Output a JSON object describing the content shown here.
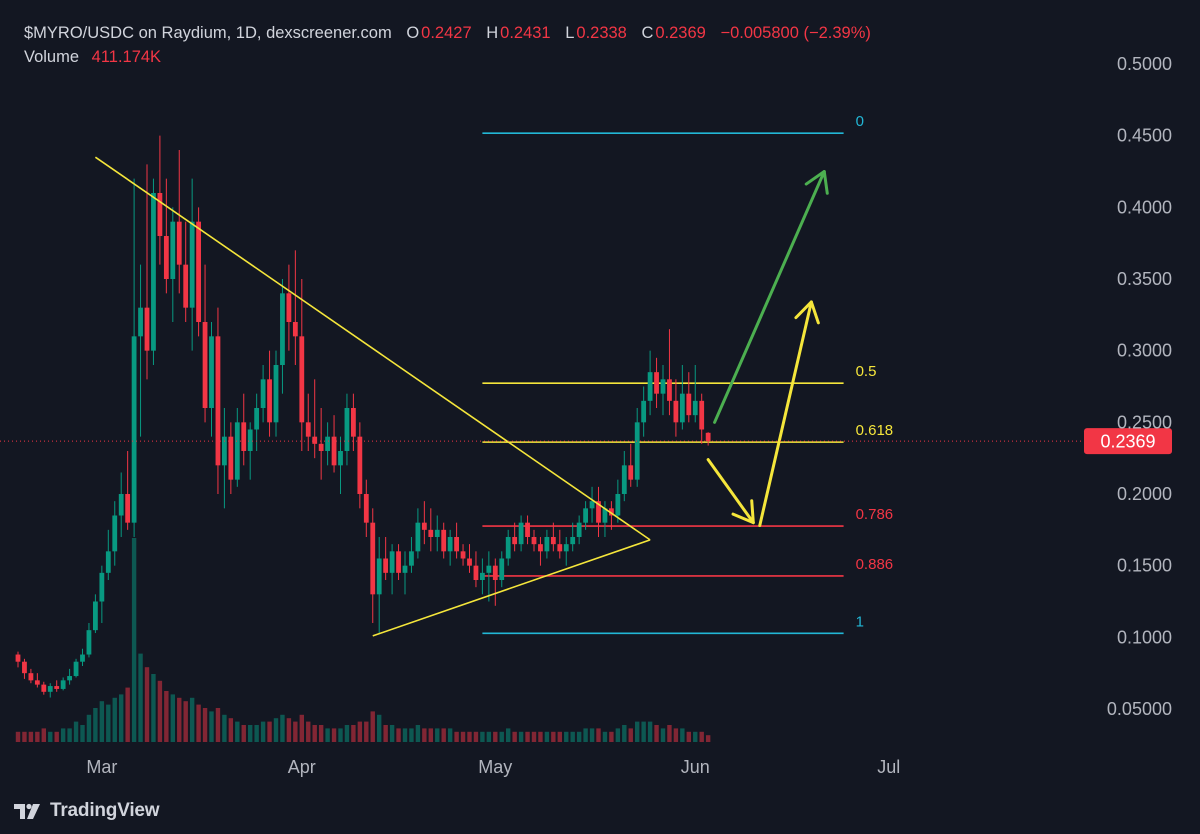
{
  "header": {
    "title": "$MYRO/USDC on Raydium, 1D, dexscreener.com",
    "o_label": "O",
    "o_value": "0.2427",
    "h_label": "H",
    "h_value": "0.2431",
    "l_label": "L",
    "l_value": "0.2338",
    "c_label": "C",
    "c_value": "0.2369",
    "change": "−0.005800 (−2.39%)"
  },
  "volume": {
    "label": "Volume",
    "value": "411.174K"
  },
  "footer": {
    "brand": "TradingView",
    "logo_icon": "tradingview-logo-icon"
  },
  "colors": {
    "up": "#089981",
    "down": "#f23645",
    "background": "#131722",
    "fib_blue": "#22b7d6",
    "fib_yellow": "#f5e63b",
    "fib_red": "#f23645",
    "green_arrow": "#4caf50"
  },
  "chart_data": {
    "type": "candlestick",
    "x_labels": [
      "Mar",
      "Apr",
      "May",
      "Jun",
      "Jul"
    ],
    "y_ticks": [
      "0.5000",
      "0.4500",
      "0.4000",
      "0.3500",
      "0.3000",
      "0.2500",
      "0.2000",
      "0.1500",
      "0.1000",
      "0.05000"
    ],
    "ylim": [
      0.025,
      0.51
    ],
    "last_price": "0.2369",
    "last_price_value": 0.2369,
    "fib_levels": [
      {
        "label": "0",
        "value": 0.4517,
        "color": "#22b7d6"
      },
      {
        "label": "0.5",
        "value": 0.2773,
        "color": "#f5e63b"
      },
      {
        "label": "0.618",
        "value": 0.2362,
        "color": "#f5e63b"
      },
      {
        "label": "0.786",
        "value": 0.1776,
        "color": "#f23645"
      },
      {
        "label": "0.886",
        "value": 0.1428,
        "color": "#f23645"
      },
      {
        "label": "1",
        "value": 0.1028,
        "color": "#22b7d6"
      }
    ],
    "trendlines": [
      {
        "from": [
          "02-29",
          0.435
        ],
        "to": [
          "05-25",
          0.168
        ]
      },
      {
        "from": [
          "04-12",
          0.101
        ],
        "to": [
          "05-25",
          0.168
        ]
      }
    ],
    "arrows": [
      {
        "color": "#4caf50",
        "from": [
          "06-04",
          0.25
        ],
        "to": [
          "06-21",
          0.425
        ]
      },
      {
        "color": "#f5e63b",
        "from": [
          "06-03",
          0.224
        ],
        "to": [
          "06-10",
          0.18
        ]
      },
      {
        "color": "#f5e63b",
        "from": [
          "06-11",
          0.178
        ],
        "to": [
          "06-19",
          0.334
        ]
      }
    ],
    "candles": [
      [
        "02-17",
        0.088,
        0.09,
        0.079,
        0.083,
        3
      ],
      [
        "02-18",
        0.083,
        0.085,
        0.071,
        0.075,
        3
      ],
      [
        "02-19",
        0.075,
        0.078,
        0.068,
        0.07,
        3
      ],
      [
        "02-20",
        0.07,
        0.075,
        0.065,
        0.067,
        3
      ],
      [
        "02-21",
        0.067,
        0.069,
        0.06,
        0.062,
        4
      ],
      [
        "02-22",
        0.062,
        0.068,
        0.058,
        0.066,
        3
      ],
      [
        "02-23",
        0.066,
        0.07,
        0.062,
        0.064,
        3
      ],
      [
        "02-24",
        0.064,
        0.072,
        0.063,
        0.07,
        4
      ],
      [
        "02-25",
        0.07,
        0.078,
        0.067,
        0.073,
        4
      ],
      [
        "02-26",
        0.073,
        0.085,
        0.072,
        0.083,
        6
      ],
      [
        "02-27",
        0.083,
        0.092,
        0.08,
        0.088,
        5
      ],
      [
        "02-28",
        0.088,
        0.11,
        0.086,
        0.105,
        8
      ],
      [
        "02-29",
        0.105,
        0.13,
        0.103,
        0.125,
        10
      ],
      [
        "03-01",
        0.125,
        0.15,
        0.11,
        0.145,
        12
      ],
      [
        "03-02",
        0.145,
        0.175,
        0.14,
        0.16,
        11
      ],
      [
        "03-03",
        0.16,
        0.195,
        0.15,
        0.185,
        13
      ],
      [
        "03-04",
        0.185,
        0.215,
        0.17,
        0.2,
        14
      ],
      [
        "03-05",
        0.2,
        0.23,
        0.175,
        0.18,
        16
      ],
      [
        "03-06",
        0.18,
        0.42,
        0.17,
        0.31,
        60
      ],
      [
        "03-07",
        0.31,
        0.36,
        0.24,
        0.33,
        26
      ],
      [
        "03-08",
        0.33,
        0.43,
        0.28,
        0.3,
        22
      ],
      [
        "03-09",
        0.3,
        0.42,
        0.29,
        0.41,
        20
      ],
      [
        "03-10",
        0.41,
        0.45,
        0.36,
        0.38,
        18
      ],
      [
        "03-11",
        0.38,
        0.42,
        0.34,
        0.35,
        15
      ],
      [
        "03-12",
        0.35,
        0.4,
        0.32,
        0.39,
        14
      ],
      [
        "03-13",
        0.39,
        0.44,
        0.34,
        0.36,
        13
      ],
      [
        "03-14",
        0.36,
        0.39,
        0.32,
        0.33,
        12
      ],
      [
        "03-15",
        0.33,
        0.42,
        0.3,
        0.39,
        13
      ],
      [
        "03-16",
        0.39,
        0.4,
        0.31,
        0.32,
        11
      ],
      [
        "03-17",
        0.32,
        0.36,
        0.25,
        0.26,
        10
      ],
      [
        "03-18",
        0.26,
        0.32,
        0.24,
        0.31,
        9
      ],
      [
        "03-19",
        0.31,
        0.33,
        0.2,
        0.22,
        10
      ],
      [
        "03-20",
        0.22,
        0.26,
        0.19,
        0.24,
        8
      ],
      [
        "03-21",
        0.24,
        0.25,
        0.2,
        0.21,
        7
      ],
      [
        "03-22",
        0.21,
        0.26,
        0.205,
        0.25,
        6
      ],
      [
        "03-23",
        0.25,
        0.27,
        0.22,
        0.23,
        5
      ],
      [
        "03-24",
        0.23,
        0.25,
        0.21,
        0.245,
        5
      ],
      [
        "03-25",
        0.245,
        0.27,
        0.23,
        0.26,
        5
      ],
      [
        "03-26",
        0.26,
        0.29,
        0.25,
        0.28,
        6
      ],
      [
        "03-27",
        0.28,
        0.3,
        0.24,
        0.25,
        6
      ],
      [
        "03-28",
        0.25,
        0.3,
        0.24,
        0.29,
        7
      ],
      [
        "03-29",
        0.29,
        0.35,
        0.27,
        0.34,
        8
      ],
      [
        "03-30",
        0.34,
        0.36,
        0.3,
        0.32,
        7
      ],
      [
        "03-31",
        0.32,
        0.37,
        0.29,
        0.31,
        6
      ],
      [
        "04-01",
        0.31,
        0.35,
        0.23,
        0.25,
        8
      ],
      [
        "04-02",
        0.25,
        0.27,
        0.23,
        0.24,
        6
      ],
      [
        "04-03",
        0.24,
        0.28,
        0.225,
        0.235,
        5
      ],
      [
        "04-04",
        0.235,
        0.26,
        0.21,
        0.23,
        5
      ],
      [
        "04-05",
        0.23,
        0.25,
        0.22,
        0.24,
        4
      ],
      [
        "04-06",
        0.24,
        0.255,
        0.215,
        0.22,
        4
      ],
      [
        "04-07",
        0.22,
        0.24,
        0.2,
        0.23,
        4
      ],
      [
        "04-08",
        0.23,
        0.27,
        0.22,
        0.26,
        5
      ],
      [
        "04-09",
        0.26,
        0.27,
        0.23,
        0.24,
        5
      ],
      [
        "04-10",
        0.24,
        0.25,
        0.19,
        0.2,
        6
      ],
      [
        "04-11",
        0.2,
        0.21,
        0.17,
        0.18,
        6
      ],
      [
        "04-12",
        0.18,
        0.19,
        0.11,
        0.13,
        9
      ],
      [
        "04-13",
        0.13,
        0.17,
        0.102,
        0.155,
        8
      ],
      [
        "04-14",
        0.155,
        0.17,
        0.14,
        0.145,
        5
      ],
      [
        "04-15",
        0.145,
        0.165,
        0.13,
        0.16,
        5
      ],
      [
        "04-16",
        0.16,
        0.165,
        0.14,
        0.145,
        4
      ],
      [
        "04-17",
        0.145,
        0.16,
        0.13,
        0.15,
        4
      ],
      [
        "04-18",
        0.15,
        0.17,
        0.145,
        0.16,
        4
      ],
      [
        "04-19",
        0.16,
        0.19,
        0.155,
        0.18,
        5
      ],
      [
        "04-20",
        0.18,
        0.195,
        0.165,
        0.175,
        4
      ],
      [
        "04-21",
        0.175,
        0.19,
        0.16,
        0.17,
        4
      ],
      [
        "04-22",
        0.17,
        0.185,
        0.16,
        0.175,
        4
      ],
      [
        "04-23",
        0.175,
        0.18,
        0.155,
        0.16,
        4
      ],
      [
        "04-24",
        0.16,
        0.175,
        0.15,
        0.17,
        4
      ],
      [
        "04-25",
        0.17,
        0.18,
        0.155,
        0.16,
        3
      ],
      [
        "04-26",
        0.16,
        0.165,
        0.15,
        0.155,
        3
      ],
      [
        "04-27",
        0.155,
        0.165,
        0.145,
        0.15,
        3
      ],
      [
        "04-28",
        0.15,
        0.16,
        0.135,
        0.14,
        3
      ],
      [
        "04-29",
        0.14,
        0.155,
        0.13,
        0.145,
        3
      ],
      [
        "04-30",
        0.145,
        0.16,
        0.125,
        0.15,
        3
      ],
      [
        "05-01",
        0.15,
        0.155,
        0.122,
        0.14,
        3
      ],
      [
        "05-02",
        0.14,
        0.16,
        0.135,
        0.155,
        3
      ],
      [
        "05-03",
        0.155,
        0.175,
        0.15,
        0.17,
        4
      ],
      [
        "05-04",
        0.17,
        0.18,
        0.16,
        0.165,
        3
      ],
      [
        "05-05",
        0.165,
        0.185,
        0.16,
        0.18,
        3
      ],
      [
        "05-06",
        0.18,
        0.185,
        0.165,
        0.17,
        3
      ],
      [
        "05-07",
        0.17,
        0.175,
        0.16,
        0.165,
        3
      ],
      [
        "05-08",
        0.165,
        0.17,
        0.15,
        0.16,
        3
      ],
      [
        "05-09",
        0.16,
        0.175,
        0.155,
        0.17,
        3
      ],
      [
        "05-10",
        0.17,
        0.18,
        0.16,
        0.165,
        3
      ],
      [
        "05-11",
        0.165,
        0.175,
        0.155,
        0.16,
        3
      ],
      [
        "05-12",
        0.16,
        0.17,
        0.15,
        0.165,
        3
      ],
      [
        "05-13",
        0.165,
        0.18,
        0.16,
        0.17,
        3
      ],
      [
        "05-14",
        0.17,
        0.185,
        0.165,
        0.18,
        3
      ],
      [
        "05-15",
        0.18,
        0.195,
        0.175,
        0.19,
        4
      ],
      [
        "05-16",
        0.19,
        0.205,
        0.18,
        0.195,
        4
      ],
      [
        "05-17",
        0.195,
        0.205,
        0.17,
        0.18,
        4
      ],
      [
        "05-18",
        0.18,
        0.195,
        0.17,
        0.19,
        3
      ],
      [
        "05-19",
        0.19,
        0.195,
        0.175,
        0.185,
        3
      ],
      [
        "05-20",
        0.185,
        0.21,
        0.18,
        0.2,
        4
      ],
      [
        "05-21",
        0.2,
        0.23,
        0.195,
        0.22,
        5
      ],
      [
        "05-22",
        0.22,
        0.235,
        0.205,
        0.21,
        4
      ],
      [
        "05-23",
        0.21,
        0.26,
        0.205,
        0.25,
        6
      ],
      [
        "05-24",
        0.25,
        0.275,
        0.24,
        0.265,
        6
      ],
      [
        "05-25",
        0.265,
        0.3,
        0.255,
        0.285,
        6
      ],
      [
        "05-26",
        0.285,
        0.295,
        0.26,
        0.27,
        5
      ],
      [
        "05-27",
        0.27,
        0.29,
        0.255,
        0.28,
        4
      ],
      [
        "05-28",
        0.28,
        0.315,
        0.255,
        0.265,
        5
      ],
      [
        "05-29",
        0.265,
        0.28,
        0.24,
        0.25,
        4
      ],
      [
        "05-30",
        0.25,
        0.29,
        0.245,
        0.27,
        4
      ],
      [
        "05-31",
        0.27,
        0.285,
        0.25,
        0.255,
        3
      ],
      [
        "06-01",
        0.255,
        0.29,
        0.25,
        0.265,
        3
      ],
      [
        "06-02",
        0.265,
        0.27,
        0.235,
        0.245,
        3
      ],
      [
        "06-03",
        0.2427,
        0.2431,
        0.2338,
        0.2369,
        2
      ]
    ]
  }
}
